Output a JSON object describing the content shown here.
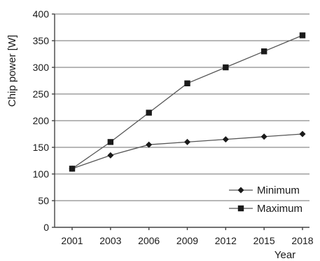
{
  "chart_data": {
    "type": "line",
    "xlabel": "Year",
    "ylabel": "Chip power [W]",
    "categories": [
      "2001",
      "2003",
      "2006",
      "2009",
      "2012",
      "2015",
      "2018"
    ],
    "ylim": [
      0,
      400
    ],
    "yticks": [
      0,
      50,
      100,
      150,
      200,
      250,
      300,
      350,
      400
    ],
    "grid": true,
    "legend_position": "bottom-right",
    "series": [
      {
        "name": "Minimum",
        "marker": "diamond",
        "values": [
          110,
          135,
          155,
          160,
          165,
          170,
          175
        ]
      },
      {
        "name": "Maximum",
        "marker": "square",
        "values": [
          110,
          160,
          215,
          270,
          300,
          330,
          360
        ]
      }
    ]
  }
}
